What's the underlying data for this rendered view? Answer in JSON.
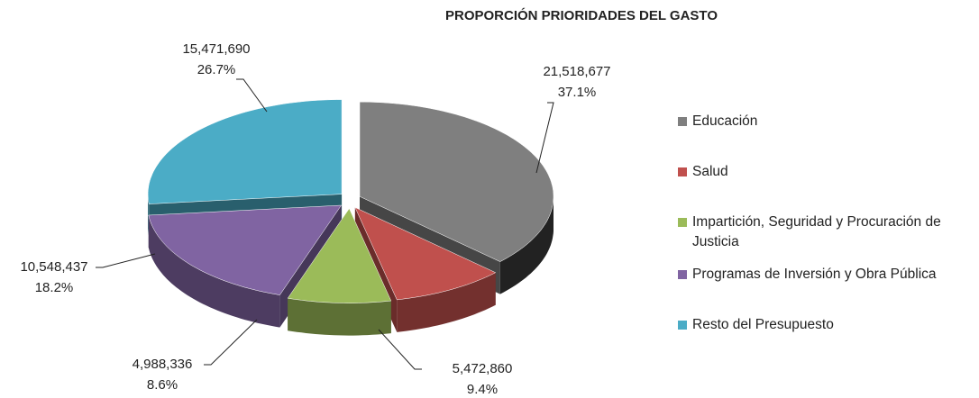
{
  "chart_data": {
    "type": "pie",
    "title": "PROPORCIÓN PRIORIDADES DEL GASTO",
    "categories": [
      "Educación",
      "Salud",
      "Impartición, Seguridad y Procuración de Justicia",
      "Programas de Inversión y Obra Pública",
      "Resto del Presupuesto"
    ],
    "values": [
      21518677,
      5472860,
      4988336,
      10548437,
      15471690
    ],
    "value_labels": [
      "21,518,677",
      "5,472,860",
      "4,988,336",
      "10,548,437",
      "15,471,690"
    ],
    "percentages": [
      37.1,
      9.4,
      8.6,
      18.2,
      26.7
    ],
    "percentage_labels": [
      "37.1%",
      "9.4%",
      "8.6%",
      "18.2%",
      "26.7%"
    ],
    "colors": [
      "#7f7f7f",
      "#c0504d",
      "#9bbb59",
      "#8064a2",
      "#4bacc6"
    ],
    "legend": "right"
  }
}
